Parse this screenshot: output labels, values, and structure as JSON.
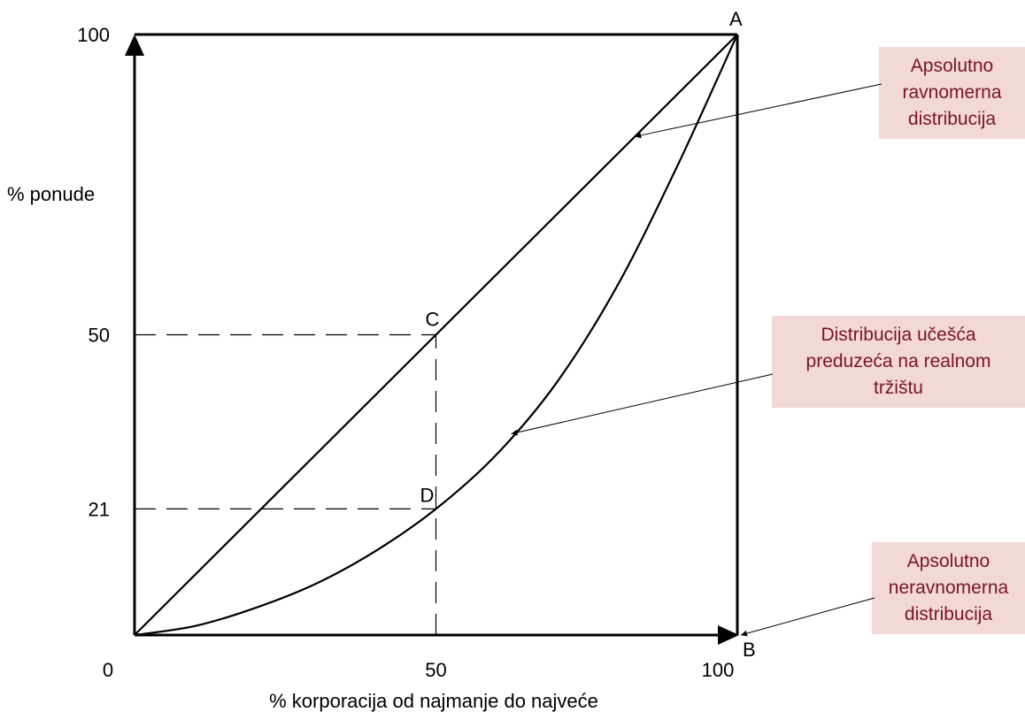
{
  "chart_data": {
    "type": "line",
    "title": "",
    "xlabel": "% korporacija od najmanje do najveće",
    "ylabel": "% ponude",
    "xlim": [
      0,
      100
    ],
    "ylim": [
      0,
      100
    ],
    "grid": false,
    "x_ticks": [
      {
        "value": 0,
        "label": "0"
      },
      {
        "value": 50,
        "label": "50"
      },
      {
        "value": 100,
        "label": "100"
      }
    ],
    "y_ticks": [
      {
        "value": 21,
        "label": "21"
      },
      {
        "value": 50,
        "label": "50"
      },
      {
        "value": 100,
        "label": "100"
      }
    ],
    "series": [
      {
        "key": "equality",
        "points": [
          [
            0,
            0
          ],
          [
            100,
            100
          ]
        ]
      },
      {
        "key": "lorenz",
        "points": [
          [
            0,
            0
          ],
          [
            10,
            1.5
          ],
          [
            20,
            4.5
          ],
          [
            30,
            8.5
          ],
          [
            40,
            14
          ],
          [
            50,
            21
          ],
          [
            60,
            30
          ],
          [
            70,
            42
          ],
          [
            80,
            58
          ],
          [
            90,
            78
          ],
          [
            100,
            100
          ]
        ]
      }
    ],
    "reference_lines": [
      {
        "from": [
          0,
          50
        ],
        "to": [
          50,
          50
        ]
      },
      {
        "from": [
          50,
          0
        ],
        "to": [
          50,
          50
        ]
      },
      {
        "from": [
          0,
          21
        ],
        "to": [
          50,
          21
        ]
      }
    ],
    "points": [
      {
        "label": "A",
        "x": 100,
        "y": 100
      },
      {
        "label": "B",
        "x": 100,
        "y": 0
      },
      {
        "label": "C",
        "x": 50,
        "y": 50
      },
      {
        "label": "D",
        "x": 50,
        "y": 21
      }
    ],
    "annotations": [
      {
        "lines": [
          "Apsolutno",
          "ravnomerna",
          "distribucija"
        ],
        "target": [
          83,
          83
        ]
      },
      {
        "lines": [
          "Distribucija učešća",
          "preduzeća na realnom",
          "tržištu"
        ],
        "target": [
          62.5,
          33.5
        ]
      },
      {
        "lines": [
          "Apsolutno",
          "neravnomerna",
          "distribucija"
        ],
        "target": [
          100,
          0
        ]
      }
    ]
  }
}
